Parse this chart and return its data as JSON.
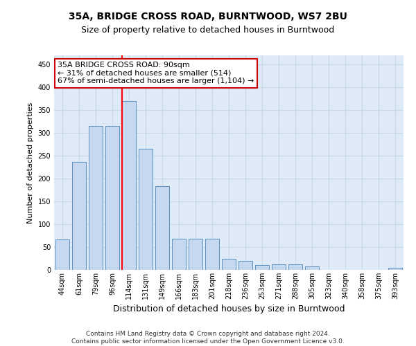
{
  "title": "35A, BRIDGE CROSS ROAD, BURNTWOOD, WS7 2BU",
  "subtitle": "Size of property relative to detached houses in Burntwood",
  "xlabel": "Distribution of detached houses by size in Burntwood",
  "ylabel": "Number of detached properties",
  "categories": [
    "44sqm",
    "61sqm",
    "79sqm",
    "96sqm",
    "114sqm",
    "131sqm",
    "149sqm",
    "166sqm",
    "183sqm",
    "201sqm",
    "218sqm",
    "236sqm",
    "253sqm",
    "271sqm",
    "288sqm",
    "305sqm",
    "323sqm",
    "340sqm",
    "358sqm",
    "375sqm",
    "393sqm"
  ],
  "values": [
    67,
    237,
    315,
    315,
    370,
    265,
    183,
    68,
    68,
    68,
    25,
    20,
    10,
    12,
    12,
    7,
    0,
    0,
    0,
    0,
    5
  ],
  "bar_color": "#c5d8f0",
  "bar_edge_color": "#5b8fbe",
  "grid_color": "#c8d8e8",
  "background_color": "#deeaf6",
  "red_line_x": 3.57,
  "annotation_text": "35A BRIDGE CROSS ROAD: 90sqm\n← 31% of detached houses are smaller (514)\n67% of semi-detached houses are larger (1,104) →",
  "annotation_box_color": "#ffffff",
  "annotation_box_edge": "#cc0000",
  "footer_line1": "Contains HM Land Registry data © Crown copyright and database right 2024.",
  "footer_line2": "Contains public sector information licensed under the Open Government Licence v3.0.",
  "ylim": [
    0,
    470
  ],
  "yticks": [
    0,
    50,
    100,
    150,
    200,
    250,
    300,
    350,
    400,
    450
  ],
  "title_fontsize": 10,
  "subtitle_fontsize": 9,
  "ylabel_fontsize": 8,
  "xlabel_fontsize": 9,
  "tick_fontsize": 7,
  "annot_fontsize": 8
}
